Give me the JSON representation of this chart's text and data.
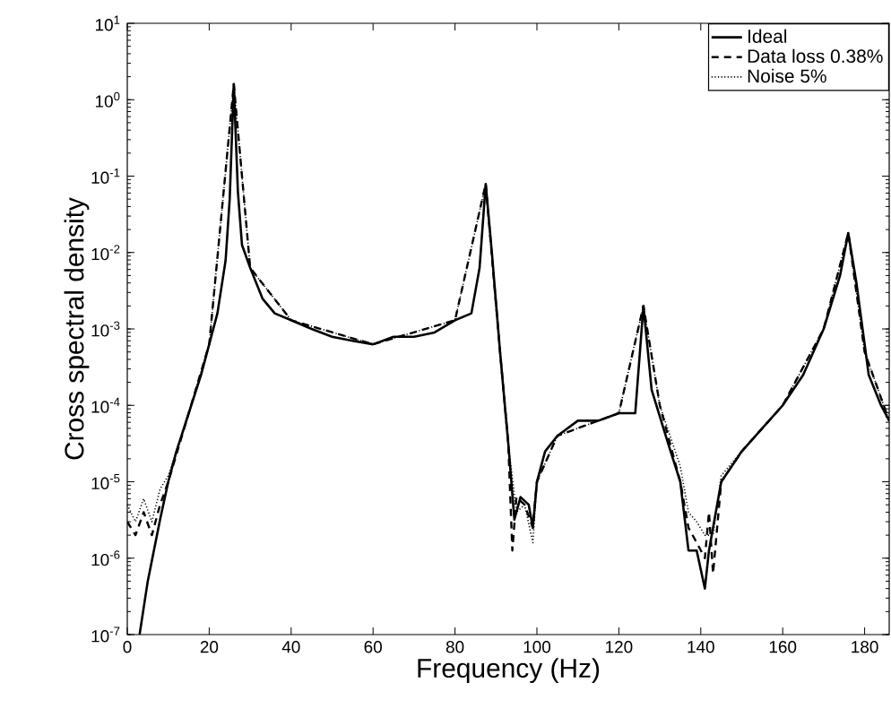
{
  "chart_data": {
    "type": "line",
    "xlabel": "Frequency (Hz)",
    "ylabel": "Cross spectral density",
    "log": "y",
    "xlim": [
      0,
      186
    ],
    "xticks": [
      0,
      20,
      40,
      60,
      80,
      100,
      120,
      140,
      160,
      180
    ],
    "ylim": [
      1e-07,
      10
    ],
    "yticks": [
      {
        "value": 1e-07,
        "label": "10$^{-7}$"
      },
      {
        "value": 1e-06,
        "label": "10$^{-6}$"
      },
      {
        "value": 1e-05,
        "label": "10$^{-5}$"
      },
      {
        "value": 0.0001,
        "label": "10$^{-4}$"
      },
      {
        "value": 0.001,
        "label": "10$^{-3}$"
      },
      {
        "value": 0.01,
        "label": "10$^{-2}$"
      },
      {
        "value": 0.1,
        "label": "10$^{-1}$"
      },
      {
        "value": 1,
        "label": "10$^{0}$"
      },
      {
        "value": 10,
        "label": "10$^{1}$"
      }
    ],
    "grid": false,
    "legend": "top right",
    "series": [
      {
        "name": "Ideal",
        "color": "#000000",
        "line_style": "solid",
        "x": [
          3,
          5,
          8,
          10,
          12,
          15,
          18,
          20,
          22,
          24,
          25,
          26,
          27,
          28,
          30,
          33,
          36,
          40,
          45,
          50,
          55,
          60,
          65,
          70,
          75,
          80,
          84,
          86,
          87.5,
          89,
          91,
          93,
          94.5,
          96,
          98,
          99,
          100,
          102,
          105,
          110,
          115,
          120,
          124,
          126,
          128,
          132,
          135,
          137,
          139,
          141,
          142,
          145,
          150,
          155,
          160,
          165,
          170,
          174,
          176,
          178,
          181,
          184,
          186
        ],
        "values": [
          1e-07,
          5e-07,
          3.2e-06,
          1e-05,
          2.5e-05,
          7.9e-05,
          0.00025,
          0.00063,
          0.0016,
          0.0079,
          0.05,
          1.6,
          0.063,
          0.0126,
          0.0063,
          0.0025,
          0.0016,
          0.0013,
          0.001,
          0.00079,
          0.0007,
          0.00063,
          0.00079,
          0.00079,
          0.0009,
          0.0013,
          0.0016,
          0.0063,
          0.079,
          0.01,
          0.0005,
          3.2e-05,
          3.2e-06,
          6.3e-06,
          5e-06,
          2.5e-06,
          1e-05,
          2.5e-05,
          4e-05,
          6.3e-05,
          6.3e-05,
          7.9e-05,
          7.9e-05,
          0.002,
          0.00016,
          3.2e-05,
          1e-05,
          1.26e-06,
          1.26e-06,
          4e-07,
          1.26e-06,
          1e-05,
          2.5e-05,
          5e-05,
          0.0001,
          0.00025,
          0.001,
          0.005,
          0.018,
          0.004,
          0.00025,
          0.0001,
          6.3e-05
        ]
      },
      {
        "name": "Data loss 0.38%",
        "color": "#000000",
        "line_style": "dashed",
        "x": [
          0,
          2,
          4,
          6,
          8,
          10,
          15,
          20,
          26,
          30,
          40,
          60,
          80,
          87.5,
          91,
          93,
          94,
          95,
          97,
          99,
          100,
          105,
          120,
          126,
          130,
          135,
          137,
          139,
          141,
          142,
          143,
          145,
          150,
          160,
          170,
          176,
          180,
          186
        ],
        "values": [
          3e-06,
          2e-06,
          4e-06,
          2e-06,
          5e-06,
          1e-05,
          7.9e-05,
          0.00063,
          1.6,
          0.0063,
          0.0013,
          0.00063,
          0.0013,
          0.079,
          0.0005,
          3.2e-05,
          1.26e-06,
          6.3e-06,
          5e-06,
          2.5e-06,
          1e-05,
          4e-05,
          7.9e-05,
          0.002,
          0.0001,
          1e-05,
          2.5e-06,
          1.6e-06,
          1e-06,
          4e-06,
          6.3e-07,
          1e-05,
          2.5e-05,
          0.0001,
          0.001,
          0.018,
          0.0005,
          6.3e-05
        ]
      },
      {
        "name": "Noise 5%",
        "color": "#000000",
        "line_style": "dotted",
        "x": [
          0,
          2,
          4,
          6,
          8,
          10,
          15,
          20,
          26,
          30,
          40,
          60,
          80,
          87.5,
          91,
          93,
          95,
          97,
          99,
          100,
          105,
          120,
          126,
          130,
          135,
          137,
          139,
          141,
          143,
          145,
          150,
          160,
          170,
          176,
          180,
          186
        ],
        "values": [
          5e-06,
          3e-06,
          6e-06,
          3e-06,
          8e-06,
          1.2e-05,
          7.9e-05,
          0.00063,
          1.6,
          0.0063,
          0.0013,
          0.00063,
          0.0013,
          0.079,
          0.0005,
          3.2e-05,
          4e-06,
          5e-06,
          1.6e-06,
          1e-05,
          4e-05,
          7.9e-05,
          0.002,
          0.0001,
          1.6e-05,
          4e-06,
          3e-06,
          2e-06,
          2e-06,
          1.2e-05,
          2.5e-05,
          0.0001,
          0.001,
          0.018,
          0.0005,
          6.3e-05
        ]
      }
    ]
  }
}
